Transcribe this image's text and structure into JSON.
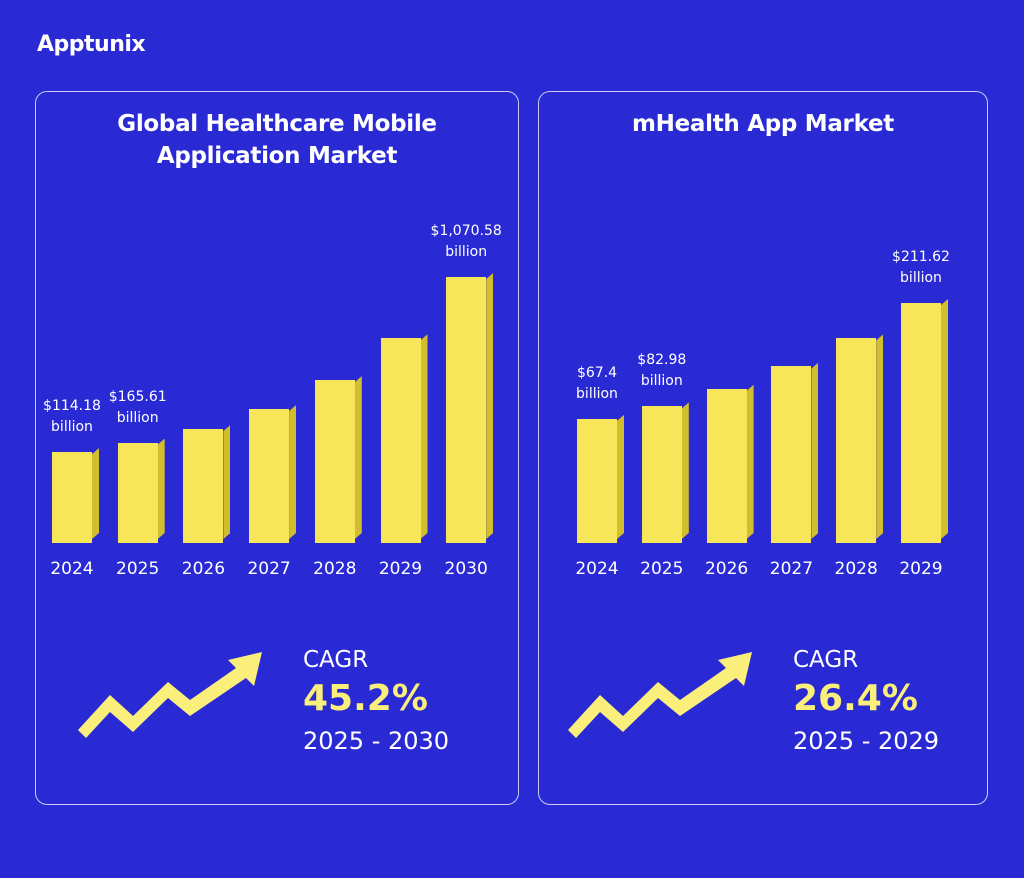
{
  "brand": "Apptunix",
  "chart_data": [
    {
      "type": "bar",
      "title": "Global Healthcare Mobile Application Market",
      "categories": [
        "2024",
        "2025",
        "2026",
        "2027",
        "2028",
        "2029",
        "2030"
      ],
      "values": [
        114.18,
        165.61,
        240.46,
        349.15,
        506.96,
        736.11,
        1070.58
      ],
      "value_labels": [
        "$114.18 billion",
        "$165.61 billion",
        null,
        null,
        null,
        null,
        "$1,070.58 billion"
      ],
      "color": "#f7e65a",
      "cagr_label": "CAGR",
      "cagr_value": "45.2%",
      "cagr_period": "2025 - 2030"
    },
    {
      "type": "bar",
      "title": "mHealth App Market",
      "categories": [
        "2024",
        "2025",
        "2026",
        "2027",
        "2028",
        "2029"
      ],
      "values": [
        67.4,
        82.98,
        104.89,
        132.58,
        167.58,
        211.62
      ],
      "value_labels": [
        "$67.4 billion",
        "$82.98 billion",
        null,
        null,
        null,
        "$211.62 billion"
      ],
      "color": "#f7e65a",
      "cagr_label": "CAGR",
      "cagr_value": "26.4%",
      "cagr_period": "2025 - 2029"
    }
  ]
}
